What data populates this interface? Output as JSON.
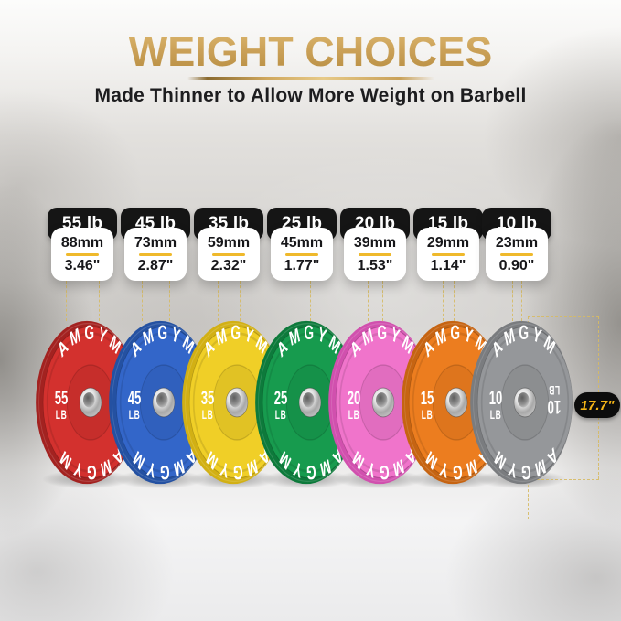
{
  "header": {
    "title": "WEIGHT CHOICES",
    "subtitle": "Made Thinner to Allow More Weight on Barbell"
  },
  "brand": "AMGYM",
  "measurement": {
    "diameter": "17.7\""
  },
  "plates": [
    {
      "label": "55 lb",
      "num": "55",
      "unit": "LB",
      "thickness_mm": "88mm",
      "thickness_in": "3.46\"",
      "mm_value": 88,
      "face_color": "#d3312e",
      "rim_color": "#a32220"
    },
    {
      "label": "45 lb",
      "num": "45",
      "unit": "LB",
      "thickness_mm": "73mm",
      "thickness_in": "2.87\"",
      "mm_value": 73,
      "face_color": "#3366c9",
      "rim_color": "#2451a2"
    },
    {
      "label": "35 lb",
      "num": "35",
      "unit": "LB",
      "thickness_mm": "59mm",
      "thickness_in": "2.32\"",
      "mm_value": 59,
      "face_color": "#f0cf27",
      "rim_color": "#d2b014"
    },
    {
      "label": "25 lb",
      "num": "25",
      "unit": "LB",
      "thickness_mm": "45mm",
      "thickness_in": "1.77\"",
      "mm_value": 45,
      "face_color": "#179b4e",
      "rim_color": "#0d7a3b"
    },
    {
      "label": "20 lb",
      "num": "20",
      "unit": "LB",
      "thickness_mm": "39mm",
      "thickness_in": "1.53\"",
      "mm_value": 39,
      "face_color": "#f074cb",
      "rim_color": "#d150ae"
    },
    {
      "label": "15 lb",
      "num": "15",
      "unit": "LB",
      "thickness_mm": "29mm",
      "thickness_in": "1.14\"",
      "mm_value": 29,
      "face_color": "#ec7d1f",
      "rim_color": "#c66412"
    },
    {
      "label": "10 lb",
      "num": "10",
      "unit": "LB",
      "thickness_mm": "23mm",
      "thickness_in": "0.90\"",
      "mm_value": 23,
      "face_color": "#95979a",
      "rim_color": "#7a7c7f"
    }
  ],
  "style": {
    "gold": "#c9a254",
    "dash_color": "#d9c165",
    "divider_gold": "#efb92b",
    "badge_bg": "#0c0c0c",
    "badge_text": "#f5b517"
  }
}
